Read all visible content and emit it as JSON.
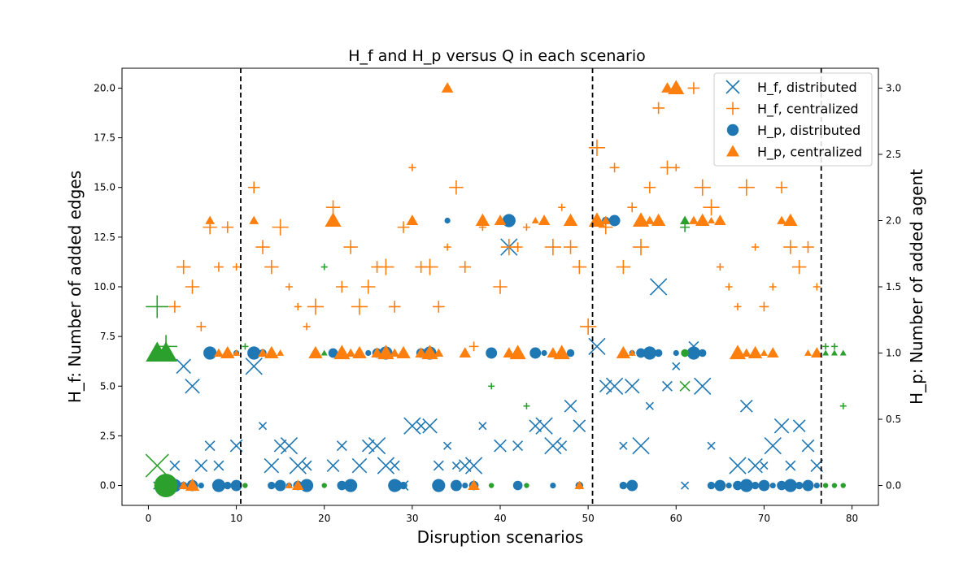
{
  "chart_data": {
    "type": "scatter",
    "title": "H_f and H_p versus Q in each scenario",
    "xlabel": "Disruption scenarios",
    "ylabel_left": "H_f: Number of added edges",
    "ylabel_right": "H_p: Number of added agent",
    "xlim": [
      -3,
      83
    ],
    "ylim_left": [
      -1,
      21
    ],
    "ylim_right": [
      -0.15,
      3.15
    ],
    "xticks": [
      "0",
      "10",
      "20",
      "30",
      "40",
      "50",
      "60",
      "70",
      "80"
    ],
    "yticks_left": [
      "0.0",
      "2.5",
      "5.0",
      "7.5",
      "10.0",
      "12.5",
      "15.0",
      "17.5",
      "20.0"
    ],
    "yticks_right": [
      "0.0",
      "0.5",
      "1.0",
      "1.5",
      "2.0",
      "2.5",
      "3.0"
    ],
    "vlines": [
      10.5,
      50.5,
      76.5
    ],
    "legend": {
      "placement": "top-right",
      "entries": [
        {
          "label": "H_f, distributed",
          "marker": "x",
          "color": "#1f77b4"
        },
        {
          "label": "H_f, centralized",
          "marker": "+",
          "color": "#ff7f0e"
        },
        {
          "label": "H_p, distributed",
          "marker": "o",
          "color": "#1f77b4"
        },
        {
          "label": "H_p, centralized",
          "marker": "^",
          "color": "#ff7f0e"
        }
      ]
    },
    "colors": {
      "distributed": "#1f77b4",
      "centralized": "#ff7f0e",
      "highlight": "#2ca02c"
    },
    "series": [
      {
        "name": "H_f, distributed",
        "marker": "x",
        "axis": "left",
        "color": "#1f77b4",
        "points": [
          [
            1,
            0
          ],
          [
            3,
            1
          ],
          [
            4,
            6
          ],
          [
            5,
            5
          ],
          [
            6,
            1
          ],
          [
            7,
            2
          ],
          [
            8,
            1
          ],
          [
            10,
            2
          ],
          [
            12,
            6
          ],
          [
            13,
            3
          ],
          [
            14,
            1
          ],
          [
            15,
            2
          ],
          [
            16,
            2
          ],
          [
            17,
            1
          ],
          [
            18,
            1
          ],
          [
            21,
            1
          ],
          [
            22,
            2
          ],
          [
            24,
            1
          ],
          [
            25,
            2
          ],
          [
            26,
            2
          ],
          [
            27,
            1
          ],
          [
            28,
            1
          ],
          [
            29,
            0
          ],
          [
            30,
            3
          ],
          [
            31,
            3
          ],
          [
            32,
            3
          ],
          [
            33,
            1
          ],
          [
            34,
            2
          ],
          [
            35,
            1
          ],
          [
            36,
            1
          ],
          [
            37,
            1
          ],
          [
            38,
            3
          ],
          [
            40,
            2
          ],
          [
            41,
            12
          ],
          [
            42,
            2
          ],
          [
            44,
            3
          ],
          [
            45,
            3
          ],
          [
            46,
            2
          ],
          [
            47,
            2
          ],
          [
            48,
            4
          ],
          [
            49,
            3
          ],
          [
            51,
            7
          ],
          [
            52,
            5
          ],
          [
            53,
            5
          ],
          [
            54,
            2
          ],
          [
            55,
            5
          ],
          [
            56,
            2
          ],
          [
            57,
            4
          ],
          [
            58,
            10
          ],
          [
            59,
            5
          ],
          [
            60,
            6
          ],
          [
            61,
            0
          ],
          [
            62,
            7
          ],
          [
            63,
            5
          ],
          [
            64,
            2
          ],
          [
            67,
            1
          ],
          [
            68,
            4
          ],
          [
            69,
            1
          ],
          [
            70,
            1
          ],
          [
            71,
            2
          ],
          [
            72,
            3
          ],
          [
            73,
            1
          ],
          [
            74,
            3
          ],
          [
            75,
            2
          ],
          [
            76,
            1
          ]
        ]
      },
      {
        "name": "H_f, centralized",
        "marker": "+",
        "axis": "left",
        "color": "#ff7f0e",
        "points": [
          [
            2,
            7
          ],
          [
            3,
            9
          ],
          [
            4,
            11
          ],
          [
            5,
            10
          ],
          [
            6,
            8
          ],
          [
            7,
            13
          ],
          [
            8,
            11
          ],
          [
            9,
            13
          ],
          [
            10,
            11
          ],
          [
            12,
            15
          ],
          [
            13,
            12
          ],
          [
            14,
            11
          ],
          [
            15,
            13
          ],
          [
            16,
            10
          ],
          [
            17,
            9
          ],
          [
            18,
            8
          ],
          [
            19,
            9
          ],
          [
            21,
            14
          ],
          [
            22,
            10
          ],
          [
            23,
            12
          ],
          [
            24,
            9
          ],
          [
            25,
            10
          ],
          [
            26,
            11
          ],
          [
            27,
            11
          ],
          [
            28,
            9
          ],
          [
            29,
            13
          ],
          [
            30,
            16
          ],
          [
            31,
            11
          ],
          [
            32,
            11
          ],
          [
            33,
            9
          ],
          [
            34,
            12
          ],
          [
            35,
            15
          ],
          [
            36,
            11
          ],
          [
            37,
            7
          ],
          [
            38,
            13
          ],
          [
            40,
            10
          ],
          [
            41,
            12
          ],
          [
            42,
            12
          ],
          [
            43,
            13
          ],
          [
            46,
            12
          ],
          [
            47,
            14
          ],
          [
            48,
            12
          ],
          [
            49,
            11
          ],
          [
            50,
            8
          ],
          [
            51,
            17
          ],
          [
            52,
            13
          ],
          [
            53,
            16
          ],
          [
            54,
            11
          ],
          [
            55,
            14
          ],
          [
            56,
            12
          ],
          [
            57,
            15
          ],
          [
            58,
            19
          ],
          [
            59,
            16
          ],
          [
            60,
            16
          ],
          [
            62,
            20
          ],
          [
            63,
            15
          ],
          [
            64,
            14
          ],
          [
            65,
            11
          ],
          [
            66,
            10
          ],
          [
            67,
            9
          ],
          [
            68,
            15
          ],
          [
            69,
            12
          ],
          [
            70,
            9
          ],
          [
            71,
            10
          ],
          [
            72,
            15
          ],
          [
            73,
            12
          ],
          [
            74,
            11
          ],
          [
            75,
            12
          ],
          [
            76,
            10
          ]
        ]
      },
      {
        "name": "H_p, distributed",
        "marker": "o",
        "axis": "right",
        "color": "#1f77b4",
        "points": [
          [
            1,
            0
          ],
          [
            3,
            0
          ],
          [
            4,
            0
          ],
          [
            5,
            0
          ],
          [
            6,
            0
          ],
          [
            7,
            1
          ],
          [
            8,
            0
          ],
          [
            9,
            0
          ],
          [
            10,
            1
          ],
          [
            10,
            0
          ],
          [
            12,
            1
          ],
          [
            13,
            1
          ],
          [
            14,
            0
          ],
          [
            15,
            0
          ],
          [
            16,
            0
          ],
          [
            17,
            0
          ],
          [
            18,
            0
          ],
          [
            21,
            1
          ],
          [
            22,
            0
          ],
          [
            23,
            0
          ],
          [
            25,
            1
          ],
          [
            26,
            1
          ],
          [
            27,
            1
          ],
          [
            28,
            0
          ],
          [
            29,
            0
          ],
          [
            31,
            1
          ],
          [
            32,
            1
          ],
          [
            33,
            0
          ],
          [
            34,
            2
          ],
          [
            35,
            0
          ],
          [
            36,
            0
          ],
          [
            37,
            0
          ],
          [
            39,
            1
          ],
          [
            41,
            2
          ],
          [
            42,
            0
          ],
          [
            44,
            1
          ],
          [
            45,
            1
          ],
          [
            46,
            0
          ],
          [
            48,
            1
          ],
          [
            49,
            0
          ],
          [
            52,
            2
          ],
          [
            53,
            2
          ],
          [
            54,
            0
          ],
          [
            55,
            0
          ],
          [
            55,
            1
          ],
          [
            56,
            1
          ],
          [
            57,
            1
          ],
          [
            58,
            1
          ],
          [
            60,
            1
          ],
          [
            62,
            1
          ],
          [
            63,
            1
          ],
          [
            64,
            0
          ],
          [
            65,
            0
          ],
          [
            66,
            0
          ],
          [
            67,
            0
          ],
          [
            68,
            0
          ],
          [
            69,
            0
          ],
          [
            70,
            0
          ],
          [
            71,
            0
          ],
          [
            72,
            0
          ],
          [
            73,
            0
          ],
          [
            74,
            0
          ],
          [
            75,
            0
          ],
          [
            76,
            0
          ]
        ]
      },
      {
        "name": "H_p, centralized",
        "marker": "^",
        "axis": "right",
        "color": "#ff7f0e",
        "points": [
          [
            4,
            0
          ],
          [
            5,
            0
          ],
          [
            7,
            2
          ],
          [
            8,
            1
          ],
          [
            9,
            1
          ],
          [
            10,
            1
          ],
          [
            12,
            2
          ],
          [
            13,
            1
          ],
          [
            14,
            1
          ],
          [
            15,
            1
          ],
          [
            16,
            0
          ],
          [
            17,
            0
          ],
          [
            19,
            1
          ],
          [
            21,
            2
          ],
          [
            22,
            1
          ],
          [
            23,
            1
          ],
          [
            24,
            1
          ],
          [
            26,
            1
          ],
          [
            27,
            1
          ],
          [
            28,
            1
          ],
          [
            29,
            1
          ],
          [
            30,
            2
          ],
          [
            31,
            1
          ],
          [
            32,
            1
          ],
          [
            33,
            1
          ],
          [
            34,
            3
          ],
          [
            36,
            1
          ],
          [
            37,
            0
          ],
          [
            38,
            2
          ],
          [
            40,
            2
          ],
          [
            41,
            1
          ],
          [
            42,
            1
          ],
          [
            44,
            2
          ],
          [
            45,
            2
          ],
          [
            46,
            1
          ],
          [
            47,
            1
          ],
          [
            48,
            2
          ],
          [
            49,
            0
          ],
          [
            51,
            2
          ],
          [
            52,
            2
          ],
          [
            54,
            1
          ],
          [
            55,
            1
          ],
          [
            56,
            2
          ],
          [
            57,
            2
          ],
          [
            58,
            2
          ],
          [
            59,
            3
          ],
          [
            60,
            3
          ],
          [
            62,
            2
          ],
          [
            63,
            2
          ],
          [
            64,
            2
          ],
          [
            65,
            2
          ],
          [
            67,
            1
          ],
          [
            68,
            1
          ],
          [
            69,
            1
          ],
          [
            70,
            1
          ],
          [
            71,
            1
          ],
          [
            72,
            2
          ],
          [
            73,
            2
          ],
          [
            75,
            1
          ],
          [
            76,
            1
          ]
        ]
      },
      {
        "name": "",
        "marker": "mixed",
        "axis": "mixed",
        "color": "#2ca02c",
        "points": [
          [
            1,
            9,
            "+",
            "left"
          ],
          [
            1,
            1,
            "x",
            "left"
          ],
          [
            1,
            1,
            "^",
            "right"
          ],
          [
            2,
            7,
            "+",
            "left"
          ],
          [
            2,
            1,
            "^",
            "right"
          ],
          [
            2,
            0,
            "o",
            "right"
          ],
          [
            11,
            7,
            "+",
            "left"
          ],
          [
            11,
            0,
            "o",
            "right"
          ],
          [
            20,
            11,
            "+",
            "left"
          ],
          [
            20,
            1,
            "^",
            "right"
          ],
          [
            20,
            0,
            "o",
            "right"
          ],
          [
            39,
            5,
            "+",
            "left"
          ],
          [
            39,
            0,
            "o",
            "right"
          ],
          [
            43,
            4,
            "+",
            "left"
          ],
          [
            43,
            0,
            "o",
            "right"
          ],
          [
            61,
            13,
            "+",
            "left"
          ],
          [
            61,
            5,
            "x",
            "left"
          ],
          [
            61,
            2,
            "^",
            "right"
          ],
          [
            61,
            1,
            "o",
            "right"
          ],
          [
            77,
            7,
            "+",
            "left"
          ],
          [
            77,
            1,
            "^",
            "right"
          ],
          [
            77,
            0,
            "o",
            "right"
          ],
          [
            78,
            7,
            "+",
            "left"
          ],
          [
            78,
            1,
            "^",
            "right"
          ],
          [
            78,
            0,
            "o",
            "right"
          ],
          [
            79,
            4,
            "+",
            "left"
          ],
          [
            79,
            1,
            "^",
            "right"
          ],
          [
            79,
            0,
            "o",
            "right"
          ]
        ]
      }
    ]
  }
}
